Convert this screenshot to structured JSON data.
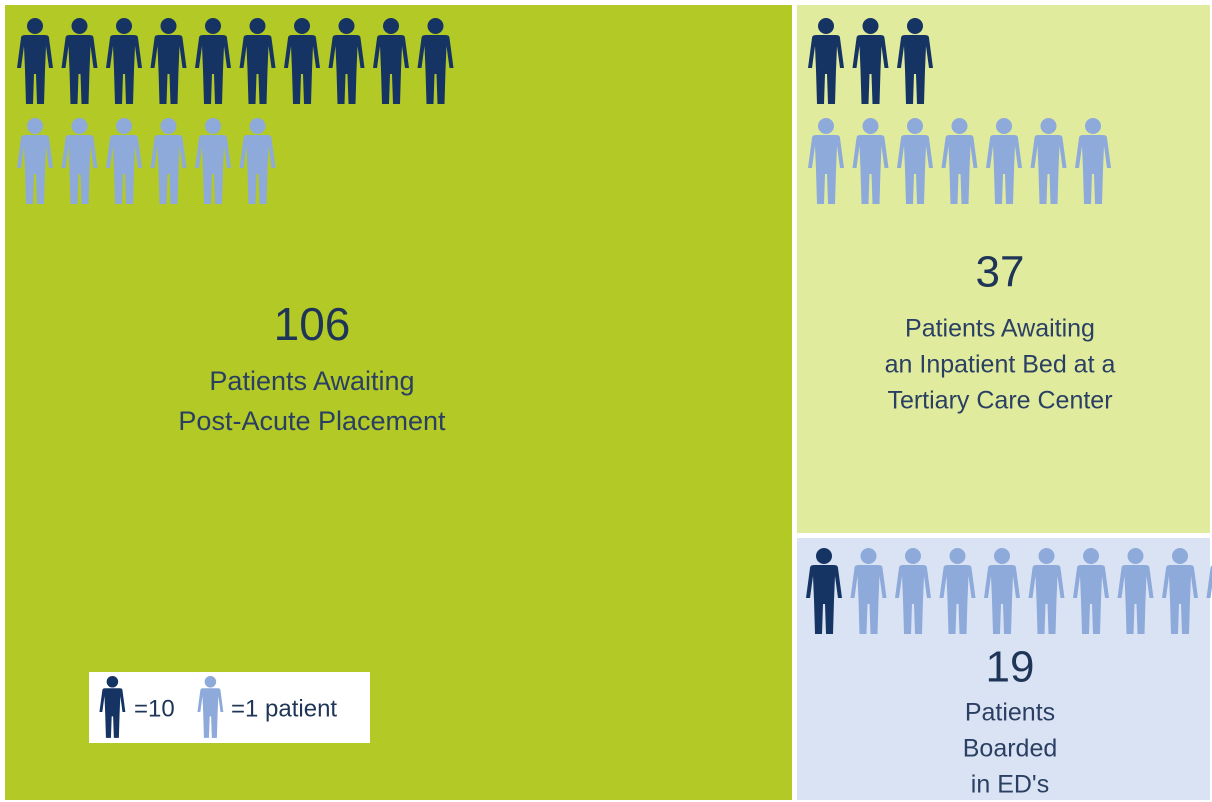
{
  "chart_data": {
    "type": "pictogram",
    "categories": [
      [
        "Patients Awaiting",
        "Post-Acute Placement"
      ],
      [
        "Patients Awaiting",
        "an Inpatient Bed at a",
        "Tertiary Care Center"
      ],
      [
        "Patients",
        "Boarded",
        "in ED's"
      ]
    ],
    "values": [
      106,
      37,
      19
    ],
    "colors": [
      "#b2c926",
      "#e0eb9e",
      "#dae3f3"
    ],
    "icon_colors": [
      "#163463",
      "#8eaadb"
    ],
    "legend": [
      {
        "unit": 10,
        "label": "=10"
      },
      {
        "unit": 1,
        "label": "=1 patient"
      }
    ]
  }
}
